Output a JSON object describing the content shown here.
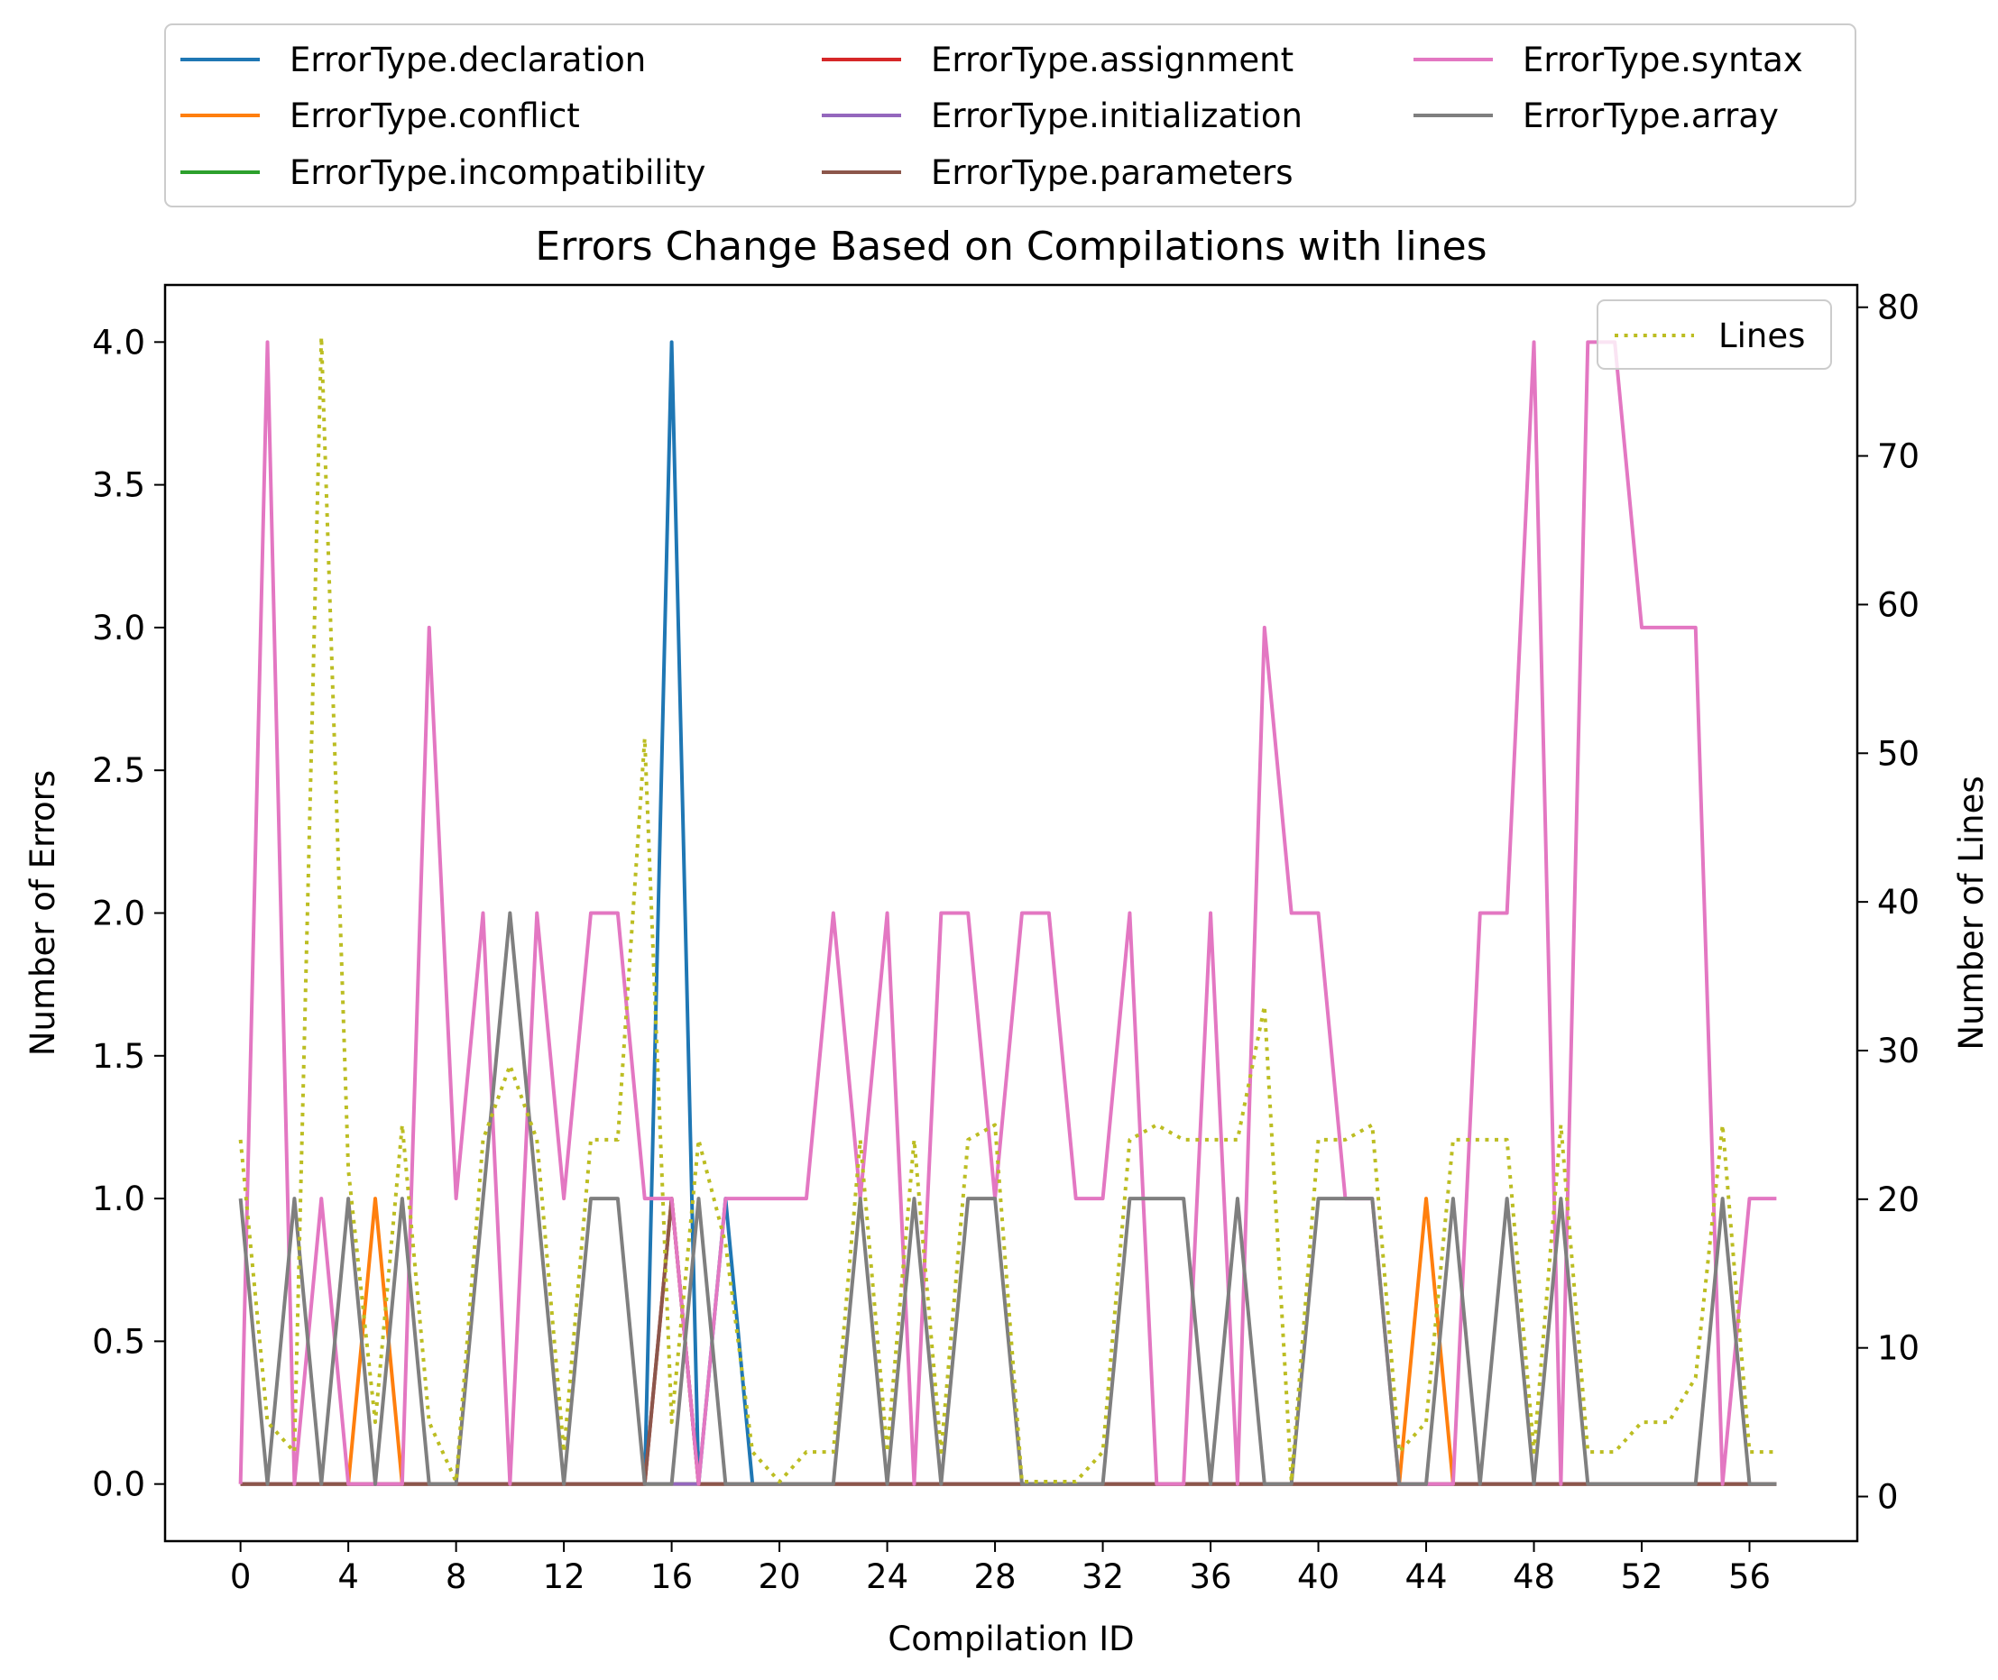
{
  "chart_data": {
    "type": "line",
    "title": "Errors Change Based on Compilations with lines",
    "xlabel": "Compilation ID",
    "ylabel": "Number of Errors",
    "y2label": "Number of Lines",
    "xlim": [
      -2.8,
      60.0
    ],
    "ylim": [
      -0.2,
      4.2
    ],
    "y2lim": [
      -3,
      81.5
    ],
    "xticks": [
      0,
      4,
      8,
      12,
      16,
      20,
      24,
      28,
      32,
      36,
      40,
      44,
      48,
      52,
      56
    ],
    "xtick_labels": [
      "0",
      "4",
      "8",
      "12",
      "16",
      "20",
      "24",
      "28",
      "32",
      "36",
      "40",
      "44",
      "48",
      "52",
      "56"
    ],
    "yticks": [
      0.0,
      0.5,
      1.0,
      1.5,
      2.0,
      2.5,
      3.0,
      3.5,
      4.0
    ],
    "ytick_labels": [
      "0.0",
      "0.5",
      "1.0",
      "1.5",
      "2.0",
      "2.5",
      "3.0",
      "3.5",
      "4.0"
    ],
    "y2ticks": [
      0,
      10,
      20,
      30,
      40,
      50,
      60,
      70,
      80
    ],
    "y2tick_labels": [
      "0",
      "10",
      "20",
      "30",
      "40",
      "50",
      "60",
      "70",
      "80"
    ],
    "x": [
      0,
      1,
      2,
      3,
      4,
      5,
      6,
      7,
      8,
      9,
      10,
      11,
      12,
      13,
      14,
      15,
      16,
      17,
      18,
      19,
      20,
      21,
      22,
      23,
      24,
      25,
      26,
      27,
      28,
      29,
      30,
      31,
      32,
      33,
      34,
      35,
      36,
      37,
      38,
      39,
      40,
      41,
      42,
      43,
      44,
      45,
      46,
      47,
      48,
      49,
      50,
      51,
      52,
      53,
      54,
      55,
      56,
      57
    ],
    "legend_position": "above plot, 3 columns",
    "grid": false,
    "series": [
      {
        "name": "ErrorType.declaration",
        "color": "#1f77b4",
        "axis": "left",
        "values": [
          0,
          0,
          0,
          0,
          0,
          0,
          0,
          0,
          0,
          0,
          0,
          0,
          0,
          0,
          0,
          0,
          4,
          0,
          1,
          0,
          0,
          0,
          0,
          0,
          0,
          0,
          0,
          0,
          0,
          0,
          0,
          0,
          0,
          0,
          0,
          0,
          0,
          0,
          0,
          0,
          0,
          0,
          0,
          0,
          0,
          0,
          0,
          0,
          0,
          0,
          0,
          0,
          0,
          0,
          0,
          0,
          0,
          0
        ]
      },
      {
        "name": "ErrorType.conflict",
        "color": "#ff7f0e",
        "axis": "left",
        "values": [
          0,
          0,
          0,
          0,
          0,
          1,
          0,
          0,
          0,
          0,
          0,
          0,
          0,
          0,
          0,
          0,
          0,
          0,
          0,
          0,
          0,
          0,
          0,
          0,
          0,
          0,
          0,
          0,
          0,
          0,
          0,
          0,
          0,
          0,
          0,
          0,
          0,
          0,
          0,
          0,
          0,
          0,
          0,
          0,
          1,
          0,
          0,
          0,
          0,
          0,
          0,
          0,
          0,
          0,
          0,
          0,
          0,
          0
        ]
      },
      {
        "name": "ErrorType.incompatibility",
        "color": "#2ca02c",
        "axis": "left",
        "values": [
          0,
          0,
          0,
          0,
          0,
          0,
          0,
          0,
          0,
          0,
          0,
          0,
          0,
          0,
          0,
          0,
          0,
          0,
          0,
          0,
          0,
          0,
          0,
          0,
          0,
          0,
          0,
          0,
          0,
          0,
          0,
          0,
          0,
          0,
          0,
          0,
          0,
          0,
          0,
          0,
          0,
          0,
          0,
          0,
          0,
          0,
          0,
          0,
          0,
          0,
          0,
          0,
          0,
          0,
          0,
          0,
          0,
          0
        ]
      },
      {
        "name": "ErrorType.assignment",
        "color": "#d62728",
        "axis": "left",
        "values": [
          0,
          0,
          0,
          0,
          0,
          0,
          0,
          0,
          0,
          0,
          0,
          0,
          0,
          0,
          0,
          0,
          1,
          0,
          0,
          0,
          0,
          0,
          0,
          0,
          0,
          0,
          0,
          0,
          0,
          0,
          0,
          0,
          0,
          0,
          0,
          0,
          0,
          0,
          0,
          0,
          0,
          0,
          0,
          0,
          0,
          0,
          0,
          0,
          0,
          0,
          0,
          0,
          0,
          0,
          0,
          0,
          0,
          0
        ]
      },
      {
        "name": "ErrorType.initialization",
        "color": "#9467bd",
        "axis": "left",
        "values": [
          0,
          0,
          0,
          0,
          0,
          0,
          0,
          0,
          0,
          0,
          0,
          0,
          0,
          0,
          0,
          0,
          0,
          0,
          0,
          0,
          0,
          0,
          0,
          0,
          0,
          0,
          0,
          0,
          0,
          0,
          0,
          0,
          0,
          0,
          0,
          0,
          0,
          0,
          0,
          0,
          0,
          0,
          0,
          0,
          0,
          0,
          0,
          0,
          0,
          0,
          0,
          0,
          0,
          0,
          0,
          0,
          0,
          0
        ]
      },
      {
        "name": "ErrorType.parameters",
        "color": "#8c564b",
        "axis": "left",
        "values": [
          0,
          0,
          0,
          0,
          0,
          0,
          0,
          0,
          0,
          0,
          0,
          0,
          0,
          0,
          0,
          0,
          1,
          0,
          0,
          0,
          0,
          0,
          0,
          0,
          0,
          0,
          0,
          0,
          0,
          0,
          0,
          0,
          0,
          0,
          0,
          0,
          0,
          0,
          0,
          0,
          0,
          0,
          0,
          0,
          0,
          0,
          0,
          0,
          0,
          0,
          0,
          0,
          0,
          0,
          0,
          0,
          0,
          0
        ]
      },
      {
        "name": "ErrorType.syntax",
        "color": "#e377c2",
        "axis": "left",
        "values": [
          0,
          4,
          0,
          1,
          0,
          0,
          0,
          3,
          1,
          2,
          0,
          2,
          1,
          2,
          2,
          1,
          1,
          0,
          1,
          1,
          1,
          1,
          2,
          1,
          2,
          0,
          2,
          2,
          1,
          2,
          2,
          1,
          1,
          2,
          0,
          0,
          2,
          0,
          3,
          2,
          2,
          1,
          1,
          0,
          0,
          0,
          2,
          2,
          4,
          0,
          4,
          4,
          3,
          3,
          3,
          0,
          1,
          1
        ]
      },
      {
        "name": "ErrorType.array",
        "color": "#7f7f7f",
        "axis": "left",
        "values": [
          1,
          0,
          1,
          0,
          1,
          0,
          1,
          0,
          0,
          1,
          2,
          1,
          0,
          1,
          1,
          0,
          0,
          1,
          0,
          0,
          0,
          0,
          0,
          1,
          0,
          1,
          0,
          1,
          1,
          0,
          0,
          0,
          0,
          1,
          1,
          1,
          0,
          1,
          0,
          0,
          1,
          1,
          1,
          0,
          0,
          1,
          0,
          1,
          0,
          1,
          0,
          0,
          0,
          0,
          0,
          1,
          0,
          0
        ]
      },
      {
        "name": "Lines",
        "color": "#bcbd22",
        "axis": "right",
        "style": "dotted",
        "values": [
          24,
          5,
          3,
          78,
          22,
          5,
          25,
          5,
          1,
          24,
          29,
          24,
          3,
          24,
          24,
          51,
          5,
          24,
          17,
          3,
          1,
          3,
          3,
          24,
          3,
          24,
          3,
          24,
          25,
          1,
          1,
          1,
          3,
          24,
          25,
          24,
          24,
          24,
          33,
          1,
          24,
          24,
          25,
          3,
          5,
          24,
          24,
          24,
          3,
          25,
          3,
          3,
          5,
          5,
          8,
          25,
          3,
          3
        ]
      }
    ]
  }
}
